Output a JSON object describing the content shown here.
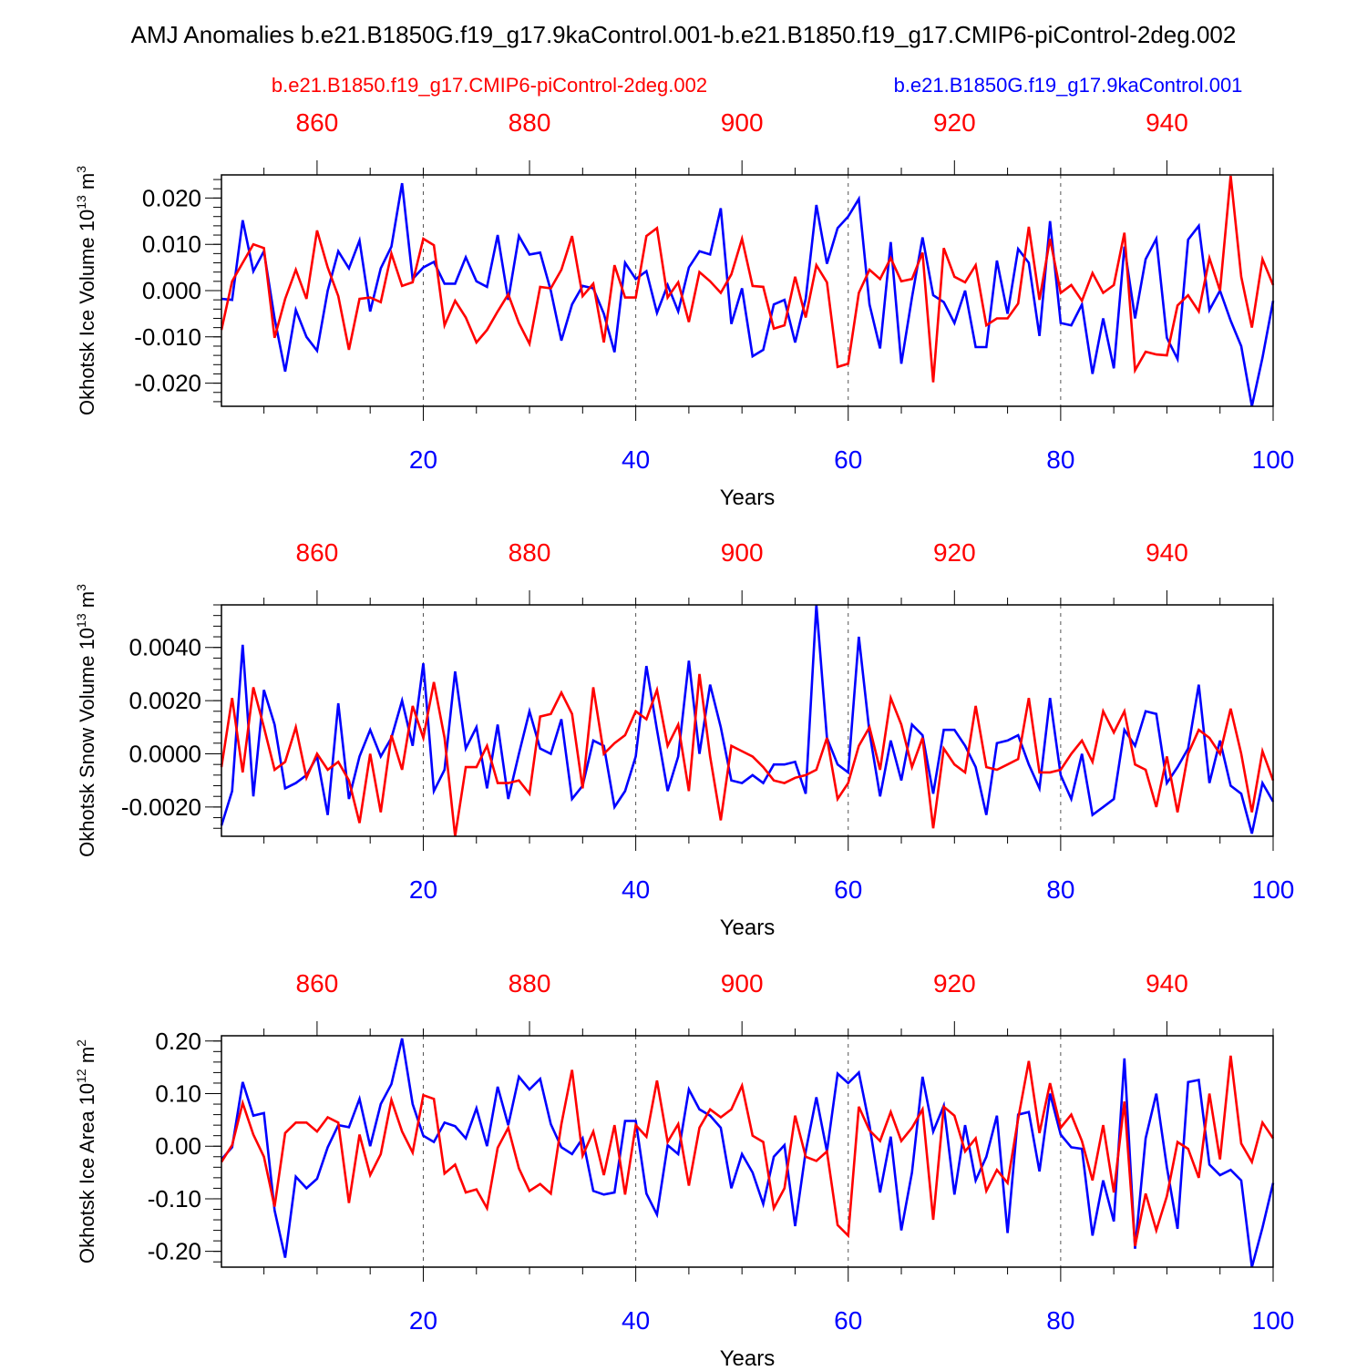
{
  "title": "AMJ Anomalies b.e21.B1850G.f19_g17.9kaControl.001-b.e21.B1850.f19_g17.CMIP6-piControl-2deg.002",
  "legend": {
    "red": "b.e21.B1850.f19_g17.CMIP6-piControl-2deg.002",
    "blue": "b.e21.B1850G.f19_g17.9kaControl.001"
  },
  "colors": {
    "red": "#ff0000",
    "blue": "#0000ff",
    "axis": "#000000"
  },
  "chart_data": [
    {
      "type": "line",
      "ylabel_main": "Okhotsk Ice Volume 10",
      "ylabel_sup": "13",
      "ylabel_unit": " m",
      "ylabel_unit_sup": "3",
      "xlabel": "Years",
      "xlim": [
        1,
        100
      ],
      "ylim": [
        -0.025,
        0.025
      ],
      "yticks": [
        -0.02,
        -0.01,
        0.0,
        0.01,
        0.02
      ],
      "yticklabels": [
        "-0.020",
        "-0.010",
        "0.000",
        "0.010",
        "0.020"
      ],
      "xticks_bottom": [
        20,
        40,
        60,
        80,
        100
      ],
      "xticks_top": [
        860,
        880,
        900,
        920,
        940
      ],
      "top_offset": 850,
      "series": [
        {
          "name": "b.e21.B1850G.f19_g17.9kaControl.001",
          "color": "blue",
          "values": [
            -0.0018,
            -0.002,
            0.0152,
            0.0042,
            0.0085,
            -0.006,
            -0.0175,
            -0.0042,
            -0.01,
            -0.013,
            0.0,
            0.0085,
            0.0048,
            0.0108,
            -0.0045,
            0.0048,
            0.0095,
            0.0232,
            0.0025,
            0.005,
            0.0062,
            0.0015,
            0.0015,
            0.0072,
            0.002,
            0.0008,
            0.012,
            -0.002,
            0.0118,
            0.0078,
            0.0082,
            0.0,
            -0.0108,
            -0.003,
            0.001,
            0.0005,
            -0.005,
            -0.0133,
            0.006,
            0.0025,
            0.0042,
            -0.0048,
            0.0012,
            -0.0045,
            0.005,
            0.0085,
            0.0078,
            0.0178,
            -0.0072,
            0.0005,
            -0.0142,
            -0.0128,
            -0.003,
            -0.002,
            -0.0112,
            -0.0018,
            0.0185,
            0.0058,
            0.0135,
            0.016,
            0.0198,
            -0.003,
            -0.0125,
            0.0105,
            -0.0158,
            -0.0015,
            0.0115,
            -0.001,
            -0.0025,
            -0.007,
            0.0,
            -0.0122,
            -0.0122,
            0.0065,
            -0.005,
            0.009,
            0.006,
            -0.0098,
            0.015,
            -0.007,
            -0.0075,
            -0.003,
            -0.018,
            -0.006,
            -0.0168,
            0.0095,
            -0.006,
            0.0068,
            0.0112,
            -0.0102,
            -0.0148,
            0.011,
            0.014,
            -0.0042,
            0.0,
            -0.0065,
            -0.012,
            -0.025,
            -0.0145,
            -0.0022
          ]
        },
        {
          "name": "b.e21.B1850.f19_g17.CMIP6-piControl-2deg.002",
          "color": "red",
          "values": [
            -0.0085,
            0.002,
            0.006,
            0.01,
            0.0092,
            -0.0102,
            -0.0018,
            0.0045,
            -0.0018,
            0.013,
            0.005,
            -0.0012,
            -0.0128,
            -0.0018,
            -0.0015,
            -0.0025,
            0.008,
            0.001,
            0.0018,
            0.0112,
            0.0098,
            -0.0075,
            -0.0022,
            -0.0058,
            -0.0112,
            -0.0085,
            -0.0045,
            -0.0008,
            -0.007,
            -0.0115,
            0.0008,
            0.0005,
            0.0045,
            0.0118,
            -0.0012,
            0.0015,
            -0.0112,
            0.0055,
            -0.0015,
            -0.0015,
            0.0118,
            0.0135,
            -0.0015,
            0.0018,
            -0.0068,
            0.004,
            0.002,
            -0.0005,
            0.0035,
            0.0112,
            0.001,
            0.0008,
            -0.0082,
            -0.0075,
            0.003,
            -0.0058,
            0.0055,
            0.0018,
            -0.0165,
            -0.0158,
            -0.0005,
            0.0045,
            0.0025,
            0.007,
            0.002,
            0.0025,
            0.0082,
            -0.0198,
            0.0092,
            0.003,
            0.0018,
            0.0055,
            -0.0075,
            -0.006,
            -0.006,
            -0.0028,
            0.0138,
            -0.002,
            0.0112,
            -0.0005,
            0.0012,
            -0.0022,
            0.0038,
            -0.0005,
            0.0012,
            0.0125,
            -0.0172,
            -0.0132,
            -0.0138,
            -0.014,
            -0.0032,
            -0.001,
            -0.0045,
            0.007,
            0.0,
            0.0248,
            0.003,
            -0.008,
            0.0068,
            0.0012
          ]
        }
      ]
    },
    {
      "type": "line",
      "ylabel_main": "Okhotsk Snow Volume 10",
      "ylabel_sup": "13",
      "ylabel_unit": " m",
      "ylabel_unit_sup": "3",
      "xlabel": "Years",
      "xlim": [
        1,
        100
      ],
      "ylim": [
        -0.0031,
        0.0056
      ],
      "yticks": [
        -0.002,
        0.0,
        0.002,
        0.004
      ],
      "yticklabels": [
        "-0.0020",
        "0.0000",
        "0.0020",
        "0.0040"
      ],
      "xticks_bottom": [
        20,
        40,
        60,
        80,
        100
      ],
      "xticks_top": [
        860,
        880,
        900,
        920,
        940
      ],
      "top_offset": 850,
      "series": [
        {
          "name": "b.e21.B1850G.f19_g17.9kaControl.001",
          "color": "blue",
          "values": [
            -0.0027,
            -0.0014,
            0.0041,
            -0.0016,
            0.0024,
            0.0011,
            -0.0013,
            -0.0011,
            -0.0008,
            -0.0001,
            -0.0023,
            0.0019,
            -0.0017,
            -0.0001,
            0.0009,
            -0.0001,
            0.0006,
            0.002,
            0.0003,
            0.0034,
            -0.0014,
            -0.0006,
            0.0031,
            0.0002,
            0.001,
            -0.0013,
            0.0011,
            -0.0017,
            0.0,
            0.0016,
            0.0002,
            0.0,
            0.0013,
            -0.0017,
            -0.0012,
            0.0005,
            0.0003,
            -0.002,
            -0.0014,
            -0.0001,
            0.0033,
            0.0009,
            -0.0014,
            -0.0001,
            0.0035,
            0.0,
            0.0026,
            0.001,
            -0.001,
            -0.0011,
            -0.0008,
            -0.0011,
            -0.0004,
            -0.0004,
            -0.0003,
            -0.0015,
            0.0056,
            0.0006,
            -0.0004,
            -0.0007,
            0.0044,
            0.0008,
            -0.0016,
            0.0005,
            -0.001,
            0.0011,
            0.0007,
            -0.0015,
            0.0009,
            0.0009,
            0.0003,
            -0.0005,
            -0.0023,
            0.0004,
            0.0005,
            0.0007,
            -0.0004,
            -0.0013,
            0.0021,
            -0.0008,
            -0.0017,
            0.0,
            -0.0023,
            -0.002,
            -0.0017,
            0.0009,
            0.0003,
            0.0016,
            0.0015,
            -0.0011,
            -0.0005,
            0.0002,
            0.0026,
            -0.0011,
            0.0005,
            -0.0012,
            -0.0015,
            -0.003,
            -0.0011,
            -0.0018
          ]
        },
        {
          "name": "b.e21.B1850.f19_g17.CMIP6-piControl-2deg.002",
          "color": "red",
          "values": [
            -0.0005,
            0.0021,
            -0.0007,
            0.0025,
            0.001,
            -0.0006,
            -0.0003,
            0.001,
            -0.0009,
            0.0,
            -0.0006,
            -0.0003,
            -0.001,
            -0.0026,
            0.0,
            -0.0022,
            0.0007,
            -0.0006,
            0.0018,
            0.0006,
            0.0027,
            0.0006,
            -0.0031,
            -0.0005,
            -0.0005,
            0.0003,
            -0.0011,
            -0.0011,
            -0.001,
            -0.0015,
            0.0014,
            0.0015,
            0.0023,
            0.0015,
            -0.0013,
            0.0025,
            0.0,
            0.0004,
            0.0007,
            0.0016,
            0.0013,
            0.0024,
            0.0003,
            0.0011,
            -0.0014,
            0.003,
            -0.0001,
            -0.0025,
            0.0003,
            0.0001,
            -0.0001,
            -0.0005,
            -0.001,
            -0.0011,
            -0.0009,
            -0.0008,
            -0.0006,
            0.0006,
            -0.0017,
            -0.0011,
            0.0003,
            0.001,
            -0.0006,
            0.0021,
            0.0011,
            -0.0005,
            0.0006,
            -0.0028,
            0.0002,
            -0.0004,
            -0.0007,
            0.0018,
            -0.0005,
            -0.0006,
            -0.0004,
            -0.0002,
            0.0021,
            -0.0007,
            -0.0007,
            -0.0006,
            0.0,
            0.0005,
            -0.0003,
            0.0016,
            0.0008,
            0.0016,
            -0.0004,
            -0.0006,
            -0.002,
            -0.0001,
            -0.0022,
            0.0,
            0.0009,
            0.0006,
            0.0,
            0.0017,
            0.0,
            -0.0022,
            0.0001,
            -0.001
          ]
        }
      ]
    },
    {
      "type": "line",
      "ylabel_main": "Okhotsk Ice Area 10",
      "ylabel_sup": "12",
      "ylabel_unit": " m",
      "ylabel_unit_sup": "2",
      "xlabel": "Years",
      "xlim": [
        1,
        100
      ],
      "ylim": [
        -0.23,
        0.21
      ],
      "yticks": [
        -0.2,
        -0.1,
        0.0,
        0.1,
        0.2
      ],
      "yticklabels": [
        "-0.20",
        "-0.10",
        "0.00",
        "0.10",
        "0.20"
      ],
      "xticks_bottom": [
        20,
        40,
        60,
        80,
        100
      ],
      "xticks_top": [
        860,
        880,
        900,
        920,
        940
      ],
      "top_offset": 850,
      "series": [
        {
          "name": "b.e21.B1850G.f19_g17.9kaControl.001",
          "color": "blue",
          "values": [
            -0.025,
            -0.002,
            0.122,
            0.058,
            0.063,
            -0.122,
            -0.212,
            -0.058,
            -0.08,
            -0.062,
            -0.002,
            0.04,
            0.036,
            0.09,
            0.0,
            0.08,
            0.118,
            0.205,
            0.08,
            0.02,
            0.008,
            0.045,
            0.038,
            0.015,
            0.072,
            0.0,
            0.113,
            0.04,
            0.132,
            0.108,
            0.128,
            0.042,
            -0.002,
            -0.015,
            0.015,
            -0.085,
            -0.092,
            -0.088,
            0.048,
            0.048,
            -0.09,
            -0.13,
            0.002,
            -0.015,
            0.108,
            0.07,
            0.058,
            0.035,
            -0.08,
            -0.015,
            -0.05,
            -0.11,
            -0.02,
            0.002,
            -0.152,
            -0.01,
            0.093,
            -0.01,
            0.138,
            0.12,
            0.14,
            0.04,
            -0.088,
            0.018,
            -0.16,
            -0.05,
            0.132,
            0.028,
            0.077,
            -0.092,
            0.04,
            -0.065,
            -0.02,
            0.058,
            -0.165,
            0.06,
            0.065,
            -0.048,
            0.1,
            0.022,
            -0.002,
            -0.005,
            -0.17,
            -0.065,
            -0.143,
            0.167,
            -0.195,
            0.015,
            0.1,
            -0.04,
            -0.157,
            0.122,
            0.126,
            -0.035,
            -0.055,
            -0.045,
            -0.065,
            -0.23,
            -0.155,
            -0.07
          ]
        },
        {
          "name": "b.e21.B1850.f19_g17.CMIP6-piControl-2deg.002",
          "color": "red",
          "values": [
            -0.03,
            0.002,
            0.082,
            0.022,
            -0.02,
            -0.115,
            0.025,
            0.045,
            0.045,
            0.028,
            0.055,
            0.045,
            -0.108,
            0.022,
            -0.055,
            -0.015,
            0.088,
            0.028,
            -0.012,
            0.097,
            0.09,
            -0.052,
            -0.035,
            -0.088,
            -0.082,
            -0.118,
            -0.003,
            0.035,
            -0.042,
            -0.085,
            -0.072,
            -0.09,
            0.042,
            0.145,
            -0.018,
            0.028,
            -0.055,
            0.04,
            -0.092,
            0.04,
            0.018,
            0.125,
            0.008,
            0.042,
            -0.075,
            0.035,
            0.07,
            0.055,
            0.07,
            0.115,
            0.02,
            0.008,
            -0.118,
            -0.08,
            0.058,
            -0.02,
            -0.028,
            -0.01,
            -0.15,
            -0.17,
            0.075,
            0.03,
            0.01,
            0.065,
            0.01,
            0.035,
            0.07,
            -0.14,
            0.075,
            0.058,
            -0.01,
            0.015,
            -0.085,
            -0.045,
            -0.07,
            0.052,
            0.162,
            0.025,
            0.12,
            0.035,
            0.06,
            0.01,
            -0.065,
            0.04,
            -0.088,
            0.085,
            -0.19,
            -0.09,
            -0.16,
            -0.095,
            0.008,
            -0.005,
            -0.06,
            0.1,
            -0.025,
            0.172,
            0.005,
            -0.03,
            0.045,
            0.015
          ]
        }
      ]
    }
  ]
}
